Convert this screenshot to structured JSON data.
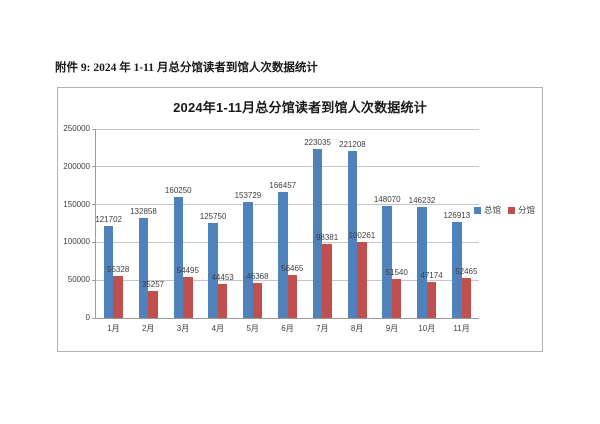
{
  "document": {
    "heading": "附件 9: 2024 年 1-11 月总分馆读者到馆人次数据统计"
  },
  "chart_data": {
    "type": "bar",
    "title": "2024年1-11月总分馆读者到馆人次数据统计",
    "categories": [
      "1月",
      "2月",
      "3月",
      "4月",
      "5月",
      "6月",
      "7月",
      "8月",
      "9月",
      "10月",
      "11月"
    ],
    "series": [
      {
        "name": "总馆",
        "color": "#4F81BD",
        "values": [
          121702,
          132858,
          160250,
          125750,
          153729,
          166457,
          223035,
          221208,
          148070,
          146232,
          126913
        ]
      },
      {
        "name": "分馆",
        "color": "#C0504D",
        "values": [
          55328,
          35257,
          54495,
          44453,
          46368,
          56465,
          98381,
          100261,
          51540,
          47174,
          52465
        ]
      }
    ],
    "ylabel": "",
    "xlabel": "",
    "ylim": [
      0,
      250000
    ],
    "ytick_interval": 50000,
    "yticks": [
      0,
      50000,
      100000,
      150000,
      200000,
      250000
    ],
    "grid": true,
    "data_labels": true,
    "legend_position": "right-middle"
  },
  "colors": {
    "grid": "#c6c6c6",
    "axis": "#9b9b9b",
    "frame_border": "#b3b3b3",
    "text": "#3f3f3f"
  }
}
